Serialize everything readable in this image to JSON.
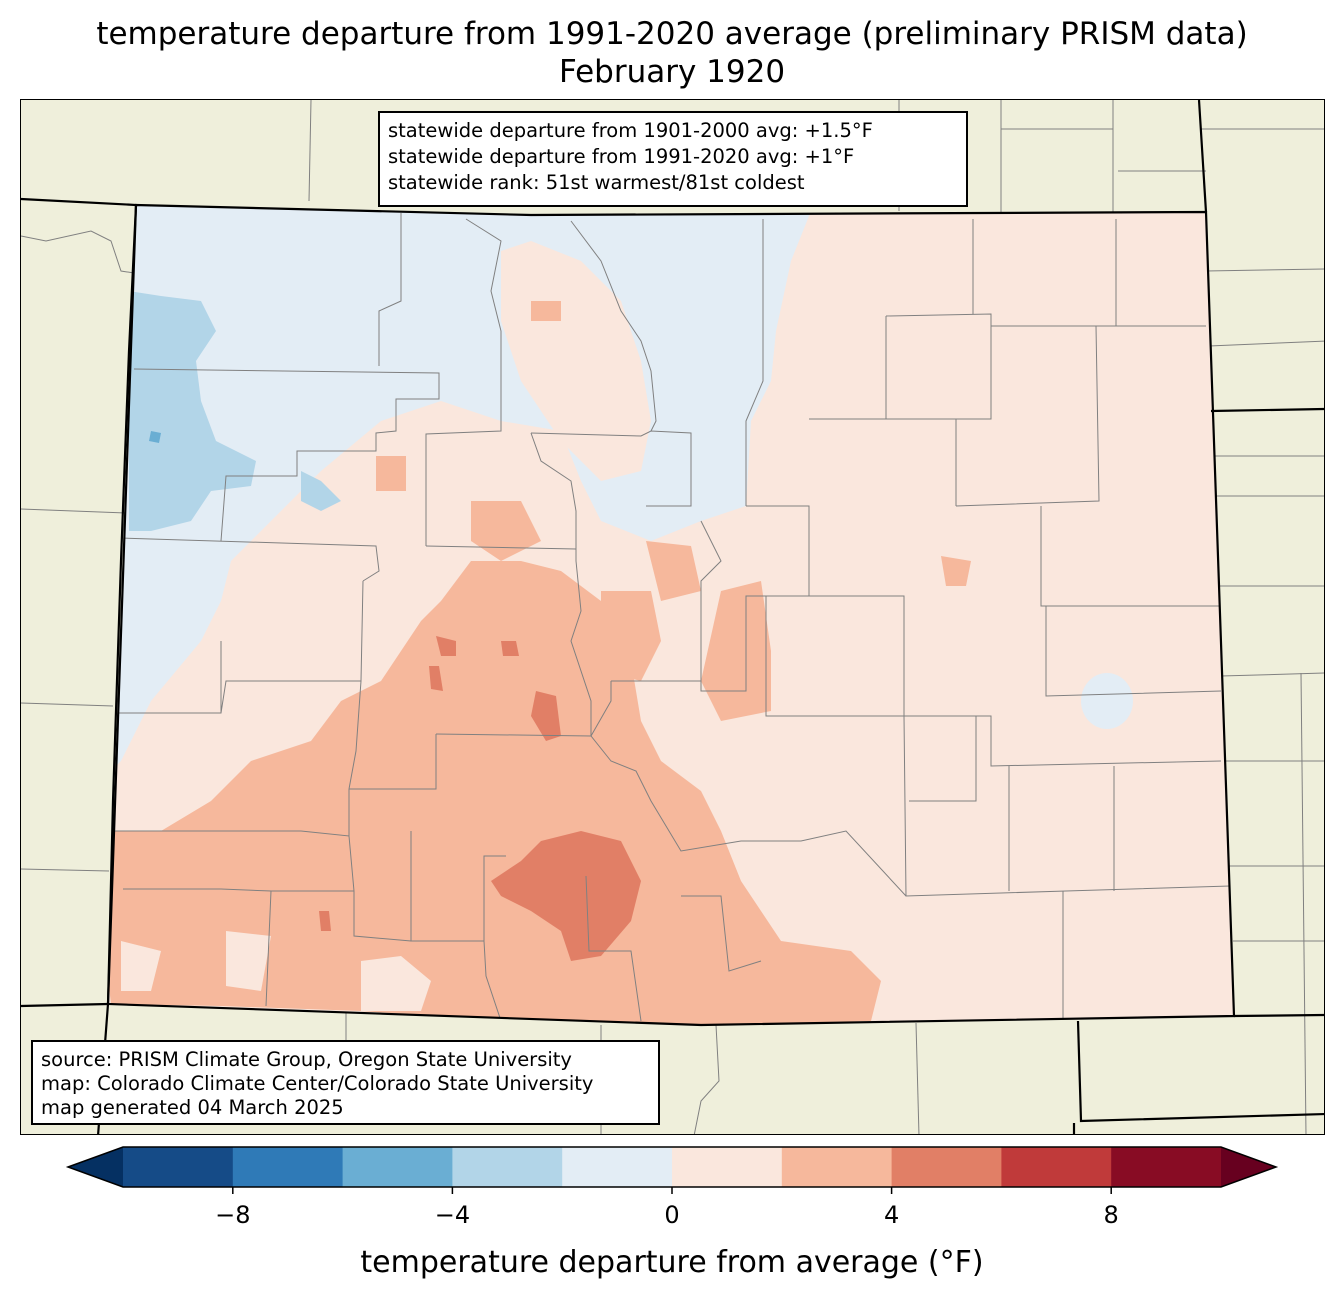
{
  "title": {
    "line1": "temperature departure from 1991-2020 average (preliminary PRISM data)",
    "line2": "February 1920"
  },
  "stats": {
    "line1": "statewide departure from 1901-2000 avg: +1.5°F",
    "line2": "statewide departure from 1991-2020 avg: +1°F",
    "line3": "statewide rank: 51st warmest/81st coldest"
  },
  "source": {
    "line1": "source: PRISM Climate Group, Oregon State University",
    "line2": "map: Colorado Climate Center/Colorado State University",
    "line3": "map generated 04 March 2025"
  },
  "colorbar": {
    "label": "temperature departure from average (°F)",
    "bins": [
      -10,
      -8,
      -6,
      -4,
      -2,
      0,
      2,
      4,
      6,
      8,
      10
    ],
    "ticks": [
      -8,
      -4,
      0,
      4,
      8
    ],
    "tick_labels": [
      "−8",
      "−4",
      "0",
      "4",
      "8"
    ],
    "colors": [
      "#154b87",
      "#2f7ab7",
      "#6aaed3",
      "#b2d5e8",
      "#e3edf5",
      "#fae7dd",
      "#f6b89c",
      "#e17f66",
      "#c03a3a",
      "#880c24"
    ],
    "under_color": "#053062",
    "over_color": "#67001f"
  },
  "colors": {
    "background_land": "#efefdb",
    "state_border": "#000000",
    "county_line": "#808080"
  }
}
